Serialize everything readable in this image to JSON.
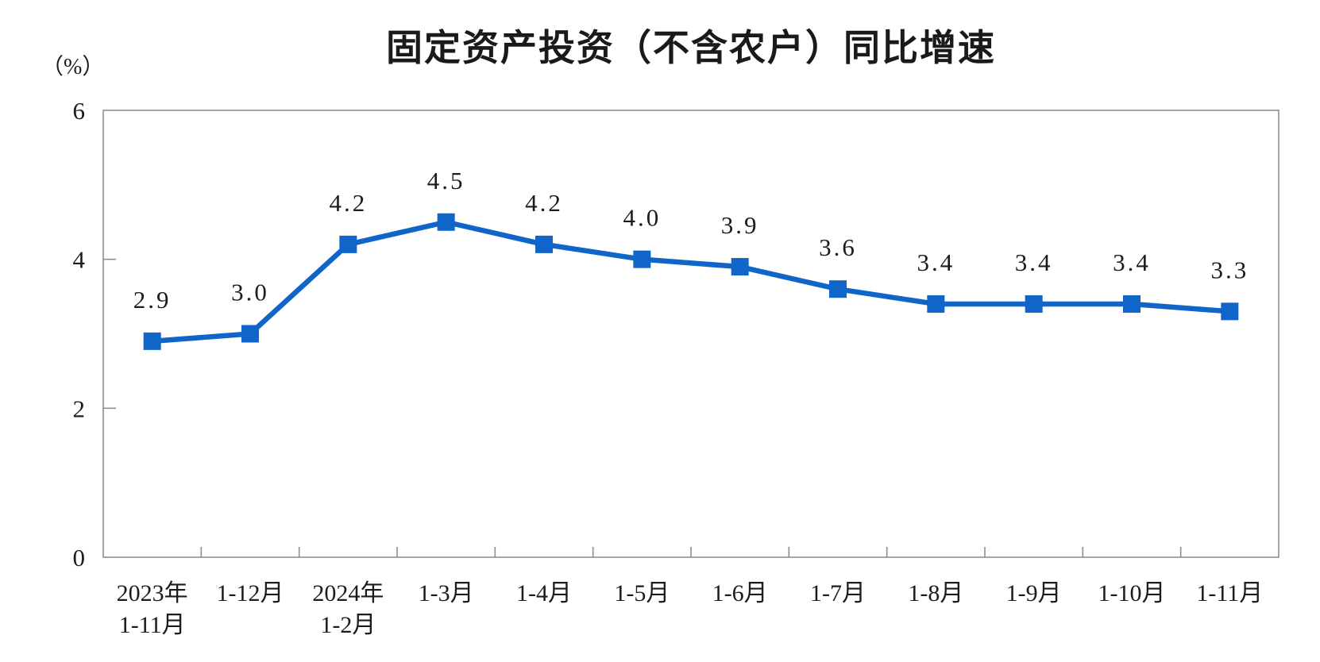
{
  "header": {
    "title": "固定资产投资（不含农户）同比增速"
  },
  "y_axis_unit": "（%）",
  "chart_data": {
    "type": "line",
    "title": "固定资产投资（不含农户）同比增速",
    "ylabel": "（%）",
    "xlabel": "",
    "ylim": [
      0,
      6
    ],
    "yticks": [
      0,
      2,
      4,
      6
    ],
    "grid": false,
    "legend_position": "none",
    "marker": "square",
    "categories": [
      "2023年\n1-11月",
      "1-12月",
      "2024年\n1-2月",
      "1-3月",
      "1-4月",
      "1-5月",
      "1-6月",
      "1-7月",
      "1-8月",
      "1-9月",
      "1-10月",
      "1-11月"
    ],
    "series": [
      {
        "name": "固定资产投资（不含农户）同比增速",
        "values": [
          2.9,
          3.0,
          4.2,
          4.5,
          4.2,
          4.0,
          3.9,
          3.6,
          3.4,
          3.4,
          3.4,
          3.3
        ],
        "labels": [
          "2.9",
          "3.0",
          "4.2",
          "4.5",
          "4.2",
          "4.0",
          "3.9",
          "3.6",
          "3.4",
          "3.4",
          "3.4",
          "3.3"
        ]
      }
    ]
  },
  "colors": {
    "line": "#1065C8",
    "marker": "#1065C8",
    "text": "#1c1c1c",
    "axis": "#8f8f8f"
  }
}
